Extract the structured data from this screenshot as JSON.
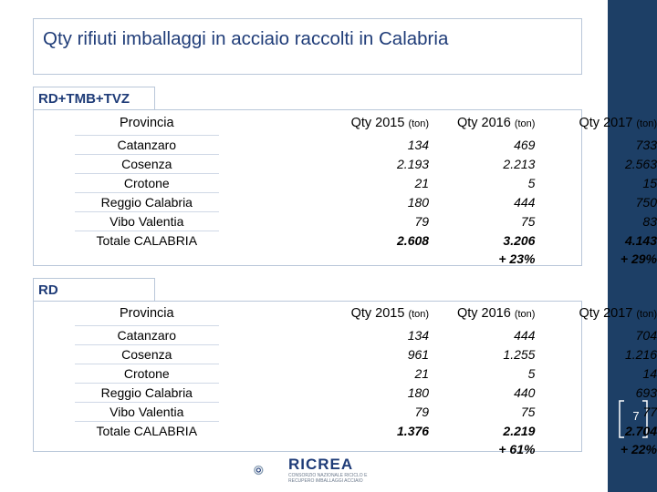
{
  "title": "Qty rifiuti imballaggi in acciaio raccolti in Calabria",
  "page_number": "7",
  "logo": {
    "name": "RICREA",
    "subtitle": "CONSORZIO NAZIONALE RICICLO E RECUPERO IMBALLAGGI ACCIAIO"
  },
  "colors": {
    "sidebar": "#1d3f66",
    "title": "#1f3c78"
  },
  "sections": [
    {
      "label": "RD+TMB+TVZ",
      "headers": {
        "provincia": "Provincia",
        "q2015": "Qty 2015",
        "q2016": "Qty 2016",
        "q2017": "Qty 2017",
        "unit": "(ton)"
      },
      "rows": [
        {
          "provincia": "Catanzaro",
          "q2015": "134",
          "q2016": "469",
          "q2017": "733"
        },
        {
          "provincia": "Cosenza",
          "q2015": "2.193",
          "q2016": "2.213",
          "q2017": "2.563"
        },
        {
          "provincia": "Crotone",
          "q2015": "21",
          "q2016": "5",
          "q2017": "15"
        },
        {
          "provincia": "Reggio Calabria",
          "q2015": "180",
          "q2016": "444",
          "q2017": "750"
        },
        {
          "provincia": "Vibo Valentia",
          "q2015": "79",
          "q2016": "75",
          "q2017": "83"
        }
      ],
      "total": {
        "provincia": "Totale CALABRIA",
        "q2015": "2.608",
        "q2016": "3.206",
        "q2017": "4.143"
      },
      "growth": {
        "q2016": "+ 23%",
        "q2017": "+ 29%"
      }
    },
    {
      "label": "RD",
      "headers": {
        "provincia": "Provincia",
        "q2015": "Qty 2015",
        "q2016": "Qty 2016",
        "q2017": "Qty 2017",
        "unit": "(ton)"
      },
      "rows": [
        {
          "provincia": "Catanzaro",
          "q2015": "134",
          "q2016": "444",
          "q2017": "704"
        },
        {
          "provincia": "Cosenza",
          "q2015": "961",
          "q2016": "1.255",
          "q2017": "1.216"
        },
        {
          "provincia": "Crotone",
          "q2015": "21",
          "q2016": "5",
          "q2017": "14"
        },
        {
          "provincia": "Reggio Calabria",
          "q2015": "180",
          "q2016": "440",
          "q2017": "693"
        },
        {
          "provincia": "Vibo Valentia",
          "q2015": "79",
          "q2016": "75",
          "q2017": "77"
        }
      ],
      "total": {
        "provincia": "Totale CALABRIA",
        "q2015": "1.376",
        "q2016": "2.219",
        "q2017": "2.704"
      },
      "growth": {
        "q2016": "+ 61%",
        "q2017": "+ 22%"
      }
    }
  ]
}
